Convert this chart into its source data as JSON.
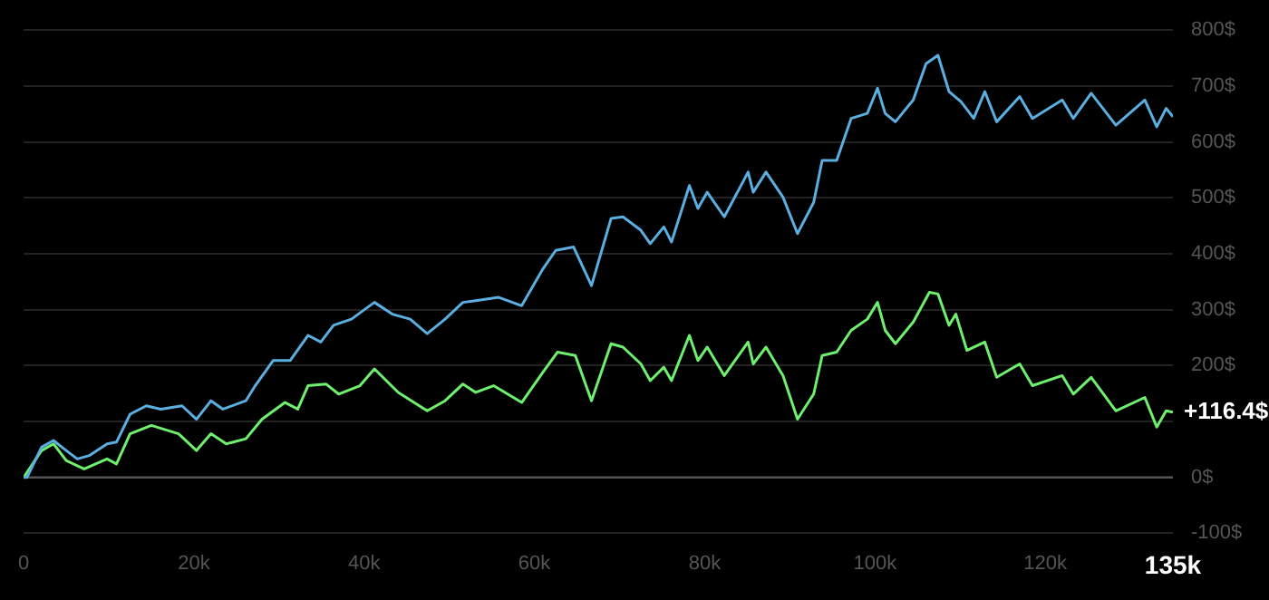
{
  "chart_data": {
    "type": "line",
    "x": [
      0,
      400,
      2100,
      3500,
      5000,
      6300,
      7700,
      9800,
      10900,
      12500,
      14400,
      16100,
      18600,
      20300,
      22000,
      23400,
      26100,
      27200,
      29300,
      31300,
      33400,
      34900,
      36400,
      38500,
      41200,
      43300,
      45400,
      47400,
      49500,
      51600,
      53100,
      55800,
      58500,
      61000,
      62500,
      64600,
      66700,
      69000,
      70400,
      72500,
      73600,
      75200,
      76100,
      78200,
      79200,
      80300,
      82300,
      85100,
      85700,
      87200,
      89200,
      90900,
      92800,
      93800,
      95500,
      97200,
      99100,
      100300,
      101200,
      102400,
      104500,
      106000,
      107400,
      108700,
      110100,
      111600,
      112900,
      114300,
      117000,
      118500,
      122000,
      123300,
      125400,
      128300,
      131700,
      133100,
      134200,
      135000
    ],
    "series": [
      {
        "color": "#5aaee0",
        "values": [
          0,
          0,
          54,
          66,
          48,
          33,
          39,
          60,
          63,
          113,
          128,
          122,
          128,
          104,
          137,
          122,
          137,
          164,
          209,
          209,
          254,
          242,
          272,
          283,
          313,
          292,
          283,
          257,
          283,
          313,
          316,
          322,
          307,
          373,
          406,
          412,
          343,
          463,
          466,
          442,
          418,
          448,
          421,
          522,
          481,
          510,
          466,
          546,
          510,
          546,
          501,
          436,
          492,
          567,
          567,
          642,
          651,
          696,
          651,
          636,
          675,
          740,
          755,
          690,
          672,
          642,
          690,
          636,
          681,
          642,
          675,
          642,
          687,
          630,
          675,
          627,
          660,
          645
        ]
      },
      {
        "color": "#6ef06e",
        "x": [
          0,
          2100,
          3500,
          5000,
          7100,
          9800,
          10900,
          12500,
          15000,
          18200,
          20300,
          22000,
          23800,
          26100,
          28000,
          30700,
          32200,
          33400,
          35500,
          37000,
          39500,
          41200,
          44000,
          47400,
          49500,
          51600,
          53100,
          55200,
          58500,
          61000,
          62700,
          64800,
          66700,
          69000,
          70400,
          72500,
          73600,
          75200,
          76100,
          78200,
          79200,
          80300,
          82300,
          85100,
          85700,
          87200,
          89200,
          90900,
          92800,
          93800,
          95500,
          97200,
          99100,
          100300,
          101200,
          102400,
          104500,
          106400,
          107400,
          108700,
          109500,
          110800,
          112900,
          114300,
          117000,
          118500,
          122000,
          123300,
          125400,
          128300,
          131700,
          133100,
          134200,
          135000
        ],
        "values": [
          0,
          48,
          60,
          30,
          15,
          33,
          24,
          78,
          93,
          78,
          48,
          78,
          60,
          69,
          104,
          134,
          122,
          164,
          167,
          149,
          164,
          194,
          152,
          119,
          137,
          167,
          152,
          164,
          134,
          188,
          224,
          218,
          137,
          239,
          233,
          203,
          173,
          197,
          173,
          254,
          209,
          233,
          182,
          242,
          203,
          233,
          182,
          104,
          149,
          218,
          224,
          263,
          283,
          313,
          263,
          239,
          278,
          331,
          328,
          272,
          292,
          227,
          242,
          179,
          203,
          164,
          182,
          149,
          179,
          119,
          143,
          90,
          119,
          116.4
        ]
      }
    ],
    "xlim": [
      0,
      135000
    ],
    "xticks": [
      {
        "value": 0,
        "label": "0"
      },
      {
        "value": 20000,
        "label": "20k"
      },
      {
        "value": 40000,
        "label": "40k"
      },
      {
        "value": 60000,
        "label": "60k"
      },
      {
        "value": 80000,
        "label": "80k"
      },
      {
        "value": 100000,
        "label": "100k"
      },
      {
        "value": 120000,
        "label": "120k"
      },
      {
        "value": 135000,
        "label": "135k"
      }
    ],
    "ylim": [
      -100,
      800
    ],
    "yticks": [
      {
        "value": -100,
        "label": "-100$"
      },
      {
        "value": 0,
        "label": "0$"
      },
      {
        "value": 100,
        "label": null
      },
      {
        "value": 200,
        "label": "200$"
      },
      {
        "value": 300,
        "label": "300$"
      },
      {
        "value": 400,
        "label": "400$"
      },
      {
        "value": 500,
        "label": "500$"
      },
      {
        "value": 600,
        "label": "600$"
      },
      {
        "value": 700,
        "label": "700$"
      },
      {
        "value": 800,
        "label": "800$"
      }
    ],
    "grid": "y",
    "legend": false,
    "marker": "none",
    "line_style": "solid",
    "ref_lines": [
      {
        "axis": "y",
        "value": 0,
        "color": "#555555"
      }
    ],
    "annotations": [
      {
        "text": "+116.4$",
        "x": 135000,
        "y": 116.4
      }
    ]
  }
}
